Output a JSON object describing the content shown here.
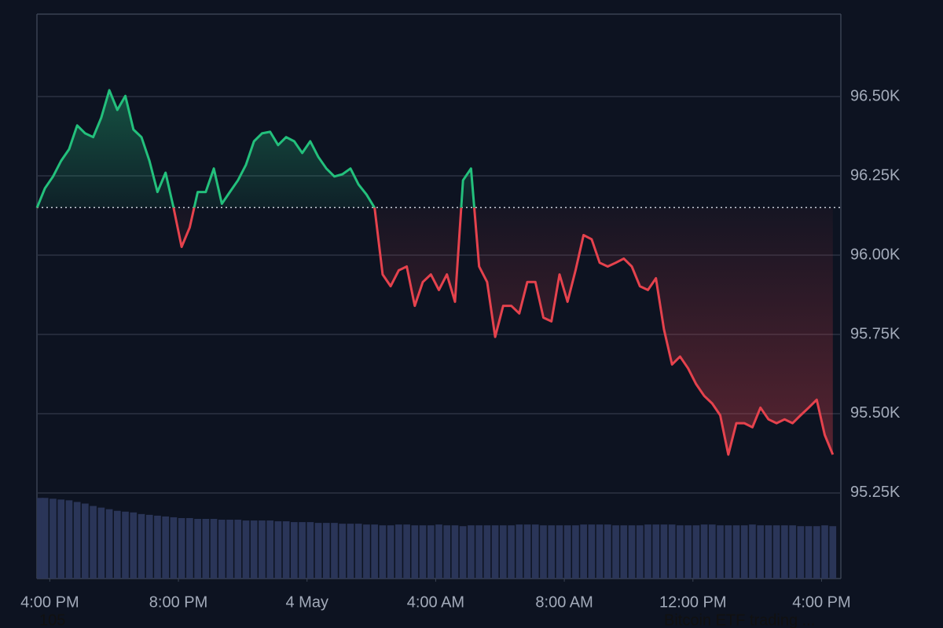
{
  "chart_data": {
    "type": "line",
    "x": [
      -0.4,
      -0.15,
      0.1,
      0.35,
      0.6,
      0.85,
      1.1,
      1.35,
      1.6,
      1.85,
      2.1,
      2.35,
      2.6,
      2.85,
      3.1,
      3.35,
      3.6,
      3.85,
      4.1,
      4.35,
      4.6,
      4.85,
      5.1,
      5.35,
      5.6,
      5.85,
      6.1,
      6.35,
      6.6,
      6.85,
      7.1,
      7.35,
      7.6,
      7.85,
      8.1,
      8.35,
      8.6,
      8.85,
      9.1,
      9.35,
      9.6,
      9.85,
      10.1,
      10.35,
      10.6,
      10.85,
      11.1,
      11.35,
      11.6,
      11.85,
      12.1,
      12.35,
      12.6,
      12.85,
      13.1,
      13.35,
      13.6,
      13.85,
      14.1,
      14.35,
      14.6,
      14.85,
      15.1,
      15.35,
      15.6,
      15.85,
      16.1,
      16.35,
      16.6,
      16.85,
      17.1,
      17.35,
      17.6,
      17.85,
      18.1,
      18.35,
      18.6,
      18.85,
      19.1,
      19.35,
      19.6,
      19.85,
      20.1,
      20.35,
      20.6,
      20.85,
      21.1,
      21.35,
      21.6,
      21.85,
      22.1,
      22.35,
      22.6,
      22.85,
      23.1,
      23.35,
      23.6,
      23.85,
      24.1,
      24.35
    ],
    "series": [
      {
        "color": "#e5424d",
        "up_color": "#23c07c",
        "values": [
          96149,
          96211,
          96248,
          96297,
          96334,
          96409,
          96384,
          96372,
          96433,
          96520,
          96458,
          96502,
          96396,
          96372,
          96297,
          96199,
          96260,
          96149,
          96026,
          96087,
          96199,
          96199,
          96273,
          96162,
          96199,
          96236,
          96285,
          96359,
          96384,
          96389,
          96347,
          96372,
          96359,
          96322,
          96359,
          96310,
          96273,
          96248,
          96255,
          96273,
          96223,
          96191,
          96149,
          95939,
          95902,
          95952,
          95964,
          95840,
          95915,
          95939,
          95890,
          95939,
          95853,
          96236,
          96273,
          95964,
          95915,
          95742,
          95840,
          95840,
          95816,
          95915,
          95915,
          95803,
          95791,
          95939,
          95853,
          95952,
          96063,
          96050,
          95976,
          95964,
          95976,
          95989,
          95964,
          95902,
          95890,
          95927,
          95766,
          95655,
          95680,
          95643,
          95593,
          95556,
          95532,
          95495,
          95371,
          95470,
          95470,
          95457,
          95519,
          95482,
          95470,
          95482,
          95470,
          95495,
          95519,
          95544,
          95433,
          95371
        ]
      }
    ],
    "baseline": 96150,
    "volume": {
      "color": "#2a3558",
      "ylim": [
        0,
        700
      ],
      "values": [
        100,
        100,
        99,
        98,
        97,
        95,
        93,
        90,
        88,
        86,
        84,
        83,
        82,
        80,
        79,
        78,
        77,
        76,
        75,
        75,
        74,
        74,
        74,
        73,
        73,
        73,
        72,
        72,
        72,
        72,
        71,
        71,
        70,
        70,
        70,
        69,
        69,
        69,
        68,
        68,
        68,
        67,
        67,
        66,
        66,
        67,
        67,
        66,
        66,
        66,
        67,
        66,
        66,
        65,
        66,
        66,
        66,
        66,
        66,
        66,
        67,
        67,
        67,
        66,
        66,
        66,
        66,
        66,
        67,
        67,
        67,
        67,
        66,
        66,
        66,
        66,
        67,
        67,
        67,
        67,
        66,
        66,
        66,
        67,
        67,
        66,
        66,
        66,
        66,
        67,
        66,
        66,
        66,
        66,
        66,
        65,
        65,
        65,
        66,
        65
      ]
    },
    "xlim": [
      -0.4,
      24.6
    ],
    "xticks": [
      {
        "value": 0,
        "label": "4:00 PM"
      },
      {
        "value": 4,
        "label": "8:00 PM"
      },
      {
        "value": 8,
        "label": "4 May"
      },
      {
        "value": 12,
        "label": "4:00 AM"
      },
      {
        "value": 16,
        "label": "8:00 AM"
      },
      {
        "value": 20,
        "label": "12:00 PM"
      },
      {
        "value": 24,
        "label": "4:00 PM"
      }
    ],
    "ylim": [
      94980,
      96760
    ],
    "yticks": [
      {
        "value": 95250,
        "label": "95.25K"
      },
      {
        "value": 95500,
        "label": "95.50K"
      },
      {
        "value": 95750,
        "label": "95.75K"
      },
      {
        "value": 96000,
        "label": "96.00K"
      },
      {
        "value": 96250,
        "label": "96.25K"
      },
      {
        "value": 96500,
        "label": "96.50K"
      }
    ],
    "grid": true,
    "annotations": [
      "105",
      "Bitcoin ETF trading ..."
    ]
  }
}
